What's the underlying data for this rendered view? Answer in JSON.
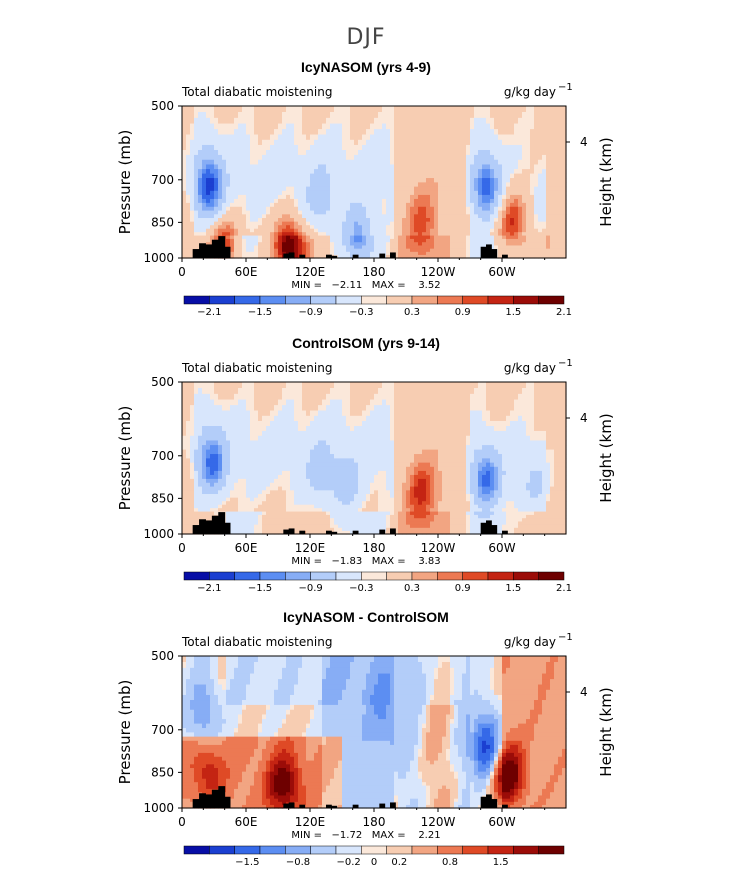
{
  "figure_title": "DJF",
  "chart_data": [
    {
      "type": "heatmap",
      "title": "IcyNASOM (yrs 4-9)",
      "subtitle_left": "Total diabatic moistening",
      "units": "g/kg day",
      "units_exp": "−1",
      "xlabel": "",
      "ylabel": "Pressure (mb)",
      "y2label": "Height (km)",
      "y2_ticks": [
        "4"
      ],
      "x_ticks": [
        "0",
        "60E",
        "120E",
        "180",
        "120W",
        "60W"
      ],
      "x_tick_lon": [
        0,
        60,
        120,
        180,
        240,
        300
      ],
      "xlim": [
        0,
        360
      ],
      "y_ticks": [
        "500",
        "700",
        "850",
        "1000"
      ],
      "y_tick_p": [
        500,
        700,
        850,
        1000
      ],
      "ylim": [
        1000,
        500
      ],
      "stats": "MIN =   −2.11   MAX =    3.52",
      "colorbar_labels": [
        "−2.1",
        "−1.5",
        "−0.9",
        "−0.3",
        "0.3",
        "0.9",
        "1.5",
        "2.1"
      ],
      "field_features": [
        {
          "lon": 25,
          "p": 720,
          "value": -2.1
        },
        {
          "lon": 130,
          "p": 760,
          "value": -0.9
        },
        {
          "lon": 165,
          "p": 900,
          "value": -1.5
        },
        {
          "lon": 225,
          "p": 850,
          "value": 0.9
        },
        {
          "lon": 285,
          "p": 720,
          "value": -1.9
        },
        {
          "lon": 310,
          "p": 840,
          "value": 1.5
        },
        {
          "lon": 40,
          "p": 950,
          "value": 1.5
        },
        {
          "lon": 100,
          "p": 950,
          "value": 2.1
        }
      ]
    },
    {
      "type": "heatmap",
      "title": "ControlSOM (yrs 9-14)",
      "subtitle_left": "Total diabatic moistening",
      "units": "g/kg day",
      "units_exp": "−1",
      "xlabel": "",
      "ylabel": "Pressure (mb)",
      "y2label": "Height (km)",
      "y2_ticks": [
        "4"
      ],
      "x_ticks": [
        "0",
        "60E",
        "120E",
        "180",
        "120W",
        "60W"
      ],
      "x_tick_lon": [
        0,
        60,
        120,
        180,
        240,
        300
      ],
      "xlim": [
        0,
        360
      ],
      "y_ticks": [
        "500",
        "700",
        "850",
        "1000"
      ],
      "y_tick_p": [
        500,
        700,
        850,
        1000
      ],
      "ylim": [
        1000,
        500
      ],
      "stats": "MIN =   −1.83   MAX =    3.83",
      "colorbar_labels": [
        "−2.1",
        "−1.5",
        "−0.9",
        "−0.3",
        "0.3",
        "0.9",
        "1.5",
        "2.1"
      ],
      "field_features": [
        {
          "lon": 28,
          "p": 720,
          "value": -1.8
        },
        {
          "lon": 130,
          "p": 760,
          "value": -0.9
        },
        {
          "lon": 155,
          "p": 800,
          "value": -0.9
        },
        {
          "lon": 225,
          "p": 830,
          "value": 1.2
        },
        {
          "lon": 285,
          "p": 780,
          "value": -1.8
        },
        {
          "lon": 330,
          "p": 800,
          "value": -0.6
        }
      ]
    },
    {
      "type": "heatmap",
      "title": "IcyNASOM - ControlSOM",
      "subtitle_left": "Total diabatic moistening",
      "units": "g/kg day",
      "units_exp": "−1",
      "xlabel": "",
      "ylabel": "Pressure (mb)",
      "y2label": "Height (km)",
      "y2_ticks": [
        "4"
      ],
      "x_ticks": [
        "0",
        "60E",
        "120E",
        "180",
        "120W",
        "60W"
      ],
      "x_tick_lon": [
        0,
        60,
        120,
        180,
        240,
        300
      ],
      "xlim": [
        0,
        360
      ],
      "y_ticks": [
        "500",
        "700",
        "850",
        "1000"
      ],
      "y_tick_p": [
        500,
        700,
        850,
        1000
      ],
      "ylim": [
        1000,
        500
      ],
      "stats": "MIN =   −1.72   MAX =    2.21",
      "colorbar_labels": [
        "−1.5",
        "−0.8",
        "−0.2",
        "0",
        "0.2",
        "0.8",
        "1.5"
      ],
      "field_features": [
        {
          "lon": 20,
          "p": 650,
          "value": -0.8
        },
        {
          "lon": 25,
          "p": 850,
          "value": 0.8
        },
        {
          "lon": 95,
          "p": 900,
          "value": 1.8
        },
        {
          "lon": 190,
          "p": 650,
          "value": -0.5
        },
        {
          "lon": 285,
          "p": 760,
          "value": -1.7
        },
        {
          "lon": 305,
          "p": 860,
          "value": 2.2
        }
      ]
    }
  ],
  "colorbar_colors": [
    "#070ea6",
    "#1b3fd1",
    "#3569e8",
    "#5c8ef2",
    "#87adf5",
    "#b3cdf9",
    "#d8e6fc",
    "#fbe8da",
    "#f7cdb2",
    "#f2a582",
    "#ec7953",
    "#df4a26",
    "#c42413",
    "#9b0c08",
    "#6e0000"
  ],
  "land_color": "#000000"
}
